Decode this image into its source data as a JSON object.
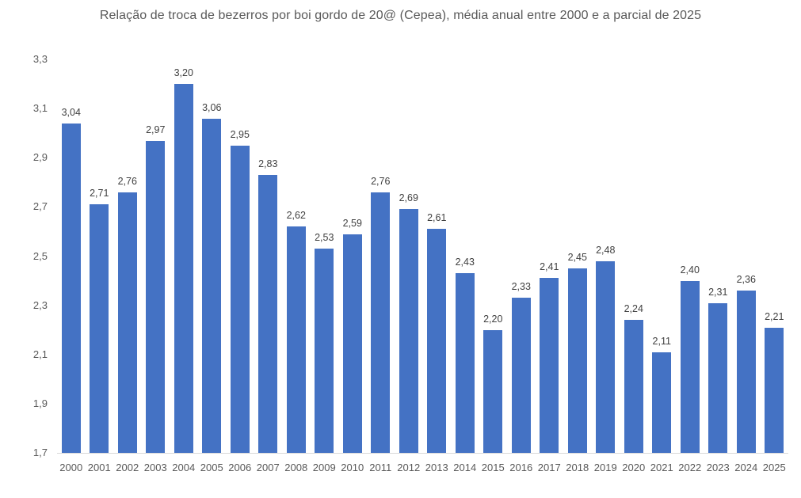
{
  "chart_data": {
    "type": "bar",
    "title": "Relação de troca de bezerros por boi gordo de 20@ (Cepea), média anual entre 2000 e a parcial de 2025",
    "xlabel": "",
    "ylabel": "",
    "ylim": [
      1.7,
      3.3
    ],
    "yticks": [
      "1,7",
      "1,9",
      "2,1",
      "2,3",
      "2,5",
      "2,7",
      "2,9",
      "3,1",
      "3,3"
    ],
    "grid": false,
    "legend": null,
    "bar_color": "#4472c4",
    "categories": [
      "2000",
      "2001",
      "2002",
      "2003",
      "2004",
      "2005",
      "2006",
      "2007",
      "2008",
      "2009",
      "2010",
      "2011",
      "2012",
      "2013",
      "2014",
      "2015",
      "2016",
      "2017",
      "2018",
      "2019",
      "2020",
      "2021",
      "2022",
      "2023",
      "2024",
      "2025"
    ],
    "values": [
      3.04,
      2.71,
      2.76,
      2.97,
      3.2,
      3.06,
      2.95,
      2.83,
      2.62,
      2.53,
      2.59,
      2.76,
      2.69,
      2.61,
      2.43,
      2.2,
      2.33,
      2.41,
      2.45,
      2.48,
      2.24,
      2.11,
      2.4,
      2.31,
      2.36,
      2.21
    ],
    "value_labels": [
      "3,04",
      "2,71",
      "2,76",
      "2,97",
      "3,20",
      "3,06",
      "2,95",
      "2,83",
      "2,62",
      "2,53",
      "2,59",
      "2,76",
      "2,69",
      "2,61",
      "2,43",
      "2,20",
      "2,33",
      "2,41",
      "2,45",
      "2,48",
      "2,24",
      "2,11",
      "2,40",
      "2,31",
      "2,36",
      "2,21"
    ]
  }
}
